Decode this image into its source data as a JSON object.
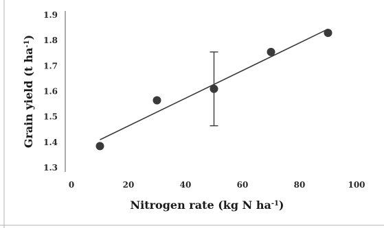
{
  "chart_data": {
    "type": "scatter",
    "title": "",
    "xlabel": {
      "main": "Nitrogen rate (kg N ha",
      "sup": "-1",
      "close": ")"
    },
    "ylabel": {
      "main": "Grain yield (t ha",
      "sup": "-1",
      "close": ")"
    },
    "xlim": [
      0,
      100
    ],
    "ylim": [
      1.3,
      1.9
    ],
    "xticks": [
      "0",
      "20",
      "40",
      "60",
      "80",
      "100"
    ],
    "yticks": [
      "1.3",
      "1.4",
      "1.5",
      "1.6",
      "1.7",
      "1.8",
      "1.9"
    ],
    "points": [
      {
        "x": 10,
        "y": 1.385
      },
      {
        "x": 30,
        "y": 1.565
      },
      {
        "x": 50,
        "y": 1.61
      },
      {
        "x": 70,
        "y": 1.755
      },
      {
        "x": 90,
        "y": 1.83
      }
    ],
    "error_bar": {
      "x": 50,
      "low": 1.465,
      "high": 1.755
    },
    "trendline": {
      "x_start": 10,
      "y_start": 1.41,
      "x_end": 90,
      "y_end": 1.845
    },
    "grid": false,
    "colors": {
      "points": "#3a3a3a",
      "line": "#3a3a3a",
      "axis": "#555555",
      "text": "#1a1a1a"
    }
  }
}
